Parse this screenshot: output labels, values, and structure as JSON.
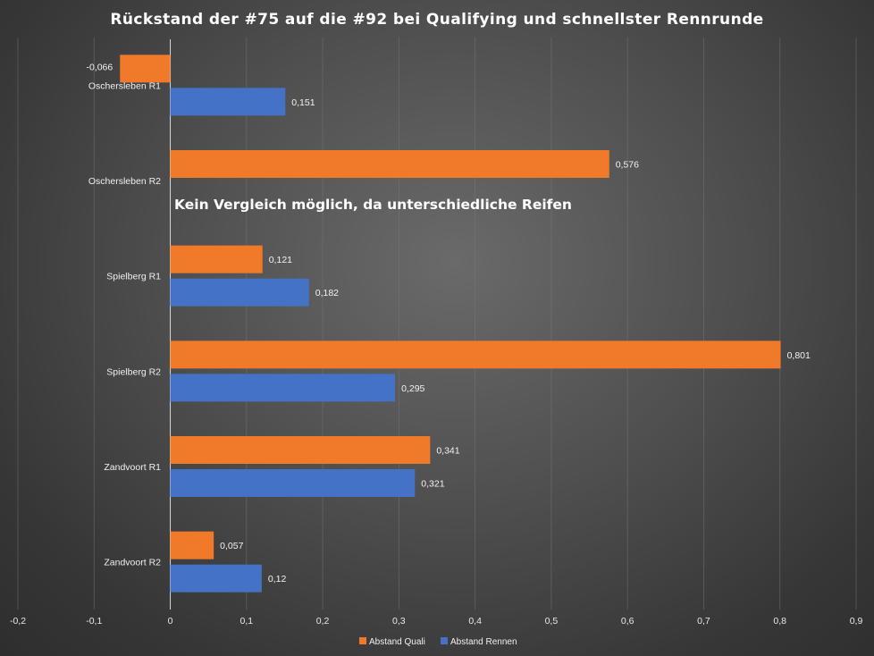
{
  "chart_data": {
    "type": "bar",
    "orientation": "horizontal",
    "title": "Rückstand der #75 auf die #92 bei Qualifying und schnellster Rennrunde",
    "categories": [
      "Oschersleben R1",
      "Oschersleben R2",
      "Spielberg R1",
      "Spielberg R2",
      "Zandvoort R1",
      "Zandvoort R2"
    ],
    "series": [
      {
        "name": "Abstand Quali",
        "color": "#f07a2a",
        "values": [
          -0.066,
          0.576,
          0.121,
          0.801,
          0.341,
          0.057
        ],
        "labels": [
          "-0,066",
          "0,576",
          "0,121",
          "0,801",
          "0,341",
          "0,057"
        ]
      },
      {
        "name": "Abstand Rennen",
        "color": "#4472c4",
        "values": [
          0.151,
          null,
          0.182,
          0.295,
          0.321,
          0.12
        ],
        "labels": [
          "0,151",
          "",
          "0,182",
          "0,295",
          "0,321",
          "0,12"
        ]
      }
    ],
    "xlim": [
      -0.2,
      0.9
    ],
    "xticks": [
      -0.2,
      -0.1,
      0,
      0.1,
      0.2,
      0.3,
      0.4,
      0.5,
      0.6,
      0.7,
      0.8,
      0.9
    ],
    "xtick_labels": [
      "-0,2",
      "-0,1",
      "0",
      "0,1",
      "0,2",
      "0,3",
      "0,4",
      "0,5",
      "0,6",
      "0,7",
      "0,8",
      "0,9"
    ],
    "grid": true,
    "legend_position": "bottom",
    "annotation": "Kein Vergleich möglich, da unterschiedliche Reifen"
  }
}
